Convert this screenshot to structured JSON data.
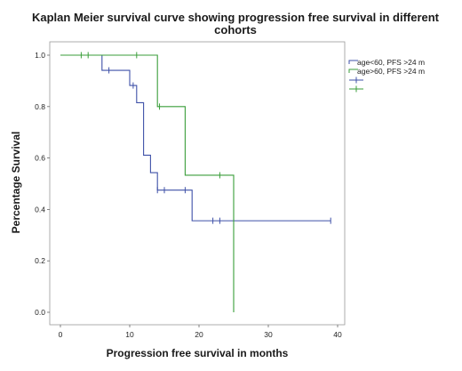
{
  "chart_data": {
    "type": "line",
    "subtype": "kaplan-meier-step",
    "title_lines": [
      "Kaplan Meier survival curve showing progression free survival in different",
      "cohorts"
    ],
    "xlabel": "Progression free survival in months",
    "ylabel": "Percentage Survival",
    "xlim": [
      0,
      40
    ],
    "ylim": [
      0,
      1.0
    ],
    "x_ticks": [
      0,
      10,
      20,
      30,
      40
    ],
    "y_ticks": [
      0.0,
      0.2,
      0.4,
      0.6,
      0.8,
      1.0
    ],
    "y_tick_labels": [
      "0.0",
      "0.2",
      "0.4",
      "0.6",
      "0.8",
      "1.0"
    ],
    "grid": false,
    "legend_position": "right",
    "series": [
      {
        "name": "age<60, PFS >24 m",
        "color": "#3f51a8",
        "steps": [
          [
            0,
            1.0
          ],
          [
            6,
            0.941
          ],
          [
            10,
            0.882
          ],
          [
            11,
            0.815
          ],
          [
            12,
            0.611
          ],
          [
            13,
            0.543
          ],
          [
            14,
            0.475
          ],
          [
            19,
            0.356
          ]
        ],
        "end_x": 39,
        "censored": [
          [
            7,
            0.941
          ],
          [
            10.5,
            0.882
          ],
          [
            14,
            0.475
          ],
          [
            15,
            0.475
          ],
          [
            18,
            0.475
          ],
          [
            22,
            0.356
          ],
          [
            23,
            0.356
          ],
          [
            39,
            0.356
          ]
        ]
      },
      {
        "name": "age>60, PFS >24 m",
        "color": "#3a9e3a",
        "steps": [
          [
            0,
            1.0
          ],
          [
            14,
            0.8
          ],
          [
            18,
            0.533
          ],
          [
            25,
            0.0
          ]
        ],
        "end_x": 25,
        "censored": [
          [
            3,
            1.0
          ],
          [
            4,
            1.0
          ],
          [
            11,
            1.0
          ],
          [
            14.3,
            0.8
          ],
          [
            23,
            0.533
          ]
        ]
      }
    ],
    "legend_extra_markers": [
      {
        "name": "",
        "color": "#3f51a8"
      },
      {
        "name": "",
        "color": "#3a9e3a"
      }
    ]
  }
}
